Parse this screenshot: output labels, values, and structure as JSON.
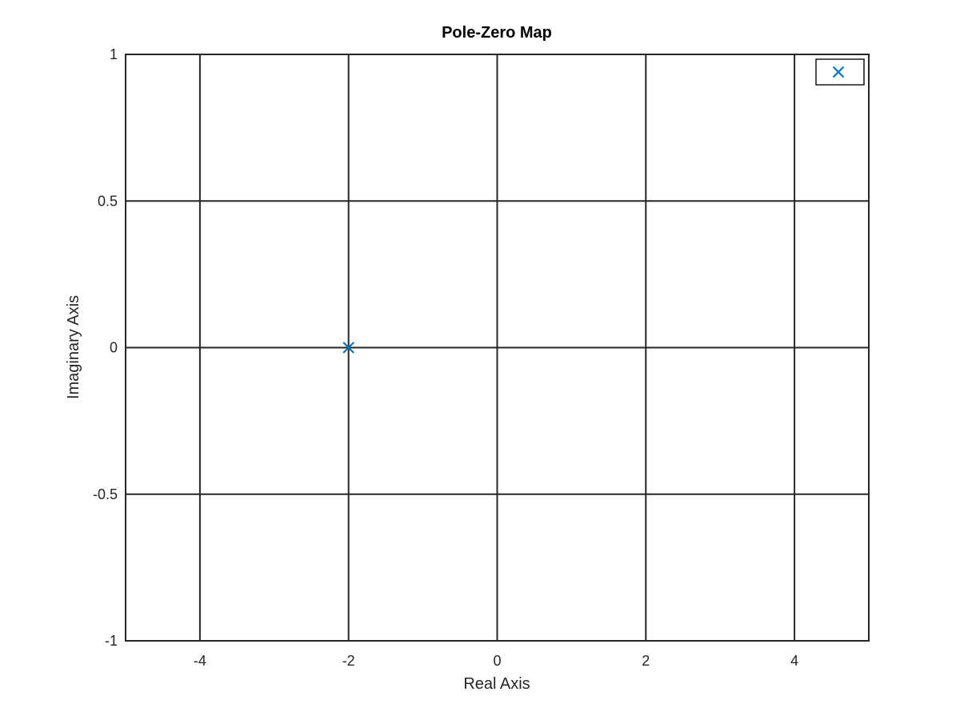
{
  "chart_data": {
    "type": "scatter",
    "title": "Pole-Zero Map",
    "xlabel": "Real Axis",
    "ylabel": "Imaginary Axis",
    "xlim": [
      -5,
      5
    ],
    "ylim": [
      -1,
      1
    ],
    "xticks": [
      -4,
      -2,
      0,
      2,
      4
    ],
    "xtick_labels": [
      "-4",
      "-2",
      "0",
      "2",
      "4"
    ],
    "yticks": [
      -1,
      -0.5,
      0,
      0.5,
      1
    ],
    "ytick_labels": [
      "-1",
      "-0.5",
      "0",
      "0.5",
      "1"
    ],
    "grid": true,
    "legend": {
      "placement": "top-right",
      "entries": [
        ""
      ]
    },
    "series": [
      {
        "marker": "x",
        "color": "#0072bd",
        "points": [
          {
            "x": -2,
            "y": 0
          }
        ]
      }
    ]
  }
}
